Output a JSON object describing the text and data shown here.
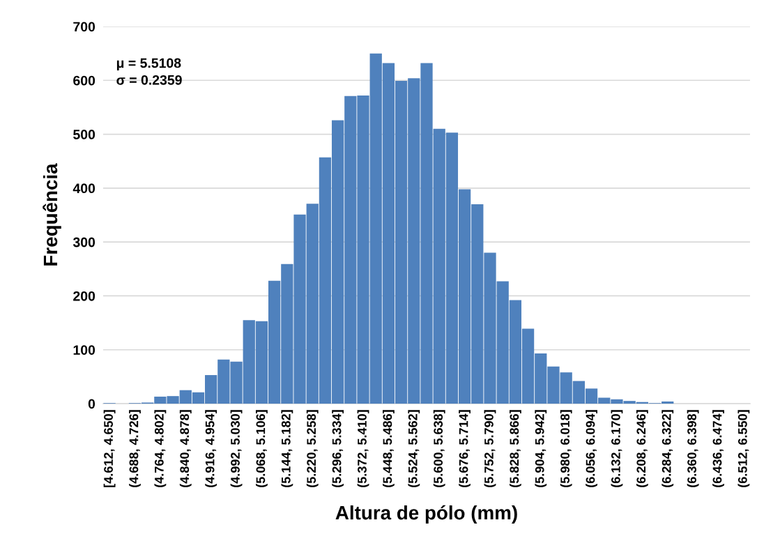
{
  "chart_data": {
    "type": "bar",
    "xlabel": "Altura de pólo (mm)",
    "ylabel": "Frequência",
    "annotations": [
      "μ = 5.5108",
      "σ = 0.2359"
    ],
    "categories": [
      "[4.612, 4.650]",
      null,
      "(4.688, 4.726]",
      null,
      "(4.764, 4.802]",
      null,
      "(4.840, 4.878]",
      null,
      "(4.916, 4.954]",
      null,
      "(4.992, 5.030]",
      null,
      "(5.068, 5.106]",
      null,
      "(5.144, 5.182]",
      null,
      "(5.220, 5.258]",
      null,
      "(5.296, 5.334]",
      null,
      "(5.372, 5.410]",
      null,
      "(5.448, 5.486]",
      null,
      "(5.524, 5.562]",
      null,
      "(5.600, 5.638]",
      null,
      "(5.676, 5.714]",
      null,
      "(5.752, 5.790]",
      null,
      "(5.828, 5.866]",
      null,
      "(5.904, 5.942]",
      null,
      "(5.980, 6.018]",
      null,
      "(6.056, 6.094]",
      null,
      "(6.132, 6.170]",
      null,
      "(6.208, 6.246]",
      null,
      "(6.284, 6.322]",
      null,
      "(6.360, 6.398]",
      null,
      "(6.436, 6.474]",
      null,
      "(6.512, 6.550]"
    ],
    "values": [
      1,
      0,
      1,
      2,
      13,
      14,
      25,
      21,
      53,
      82,
      78,
      155,
      153,
      228,
      259,
      351,
      371,
      457,
      526,
      571,
      572,
      650,
      632,
      599,
      604,
      632,
      510,
      503,
      398,
      370,
      280,
      227,
      192,
      139,
      93,
      69,
      58,
      42,
      28,
      11,
      8,
      5,
      3,
      1,
      4,
      0,
      0,
      0,
      0,
      0,
      0
    ],
    "color": "#4f81bd",
    "ylim": [
      0,
      700
    ],
    "yticks": [
      0,
      100,
      200,
      300,
      400,
      500,
      600,
      700
    ],
    "grid": "y"
  }
}
